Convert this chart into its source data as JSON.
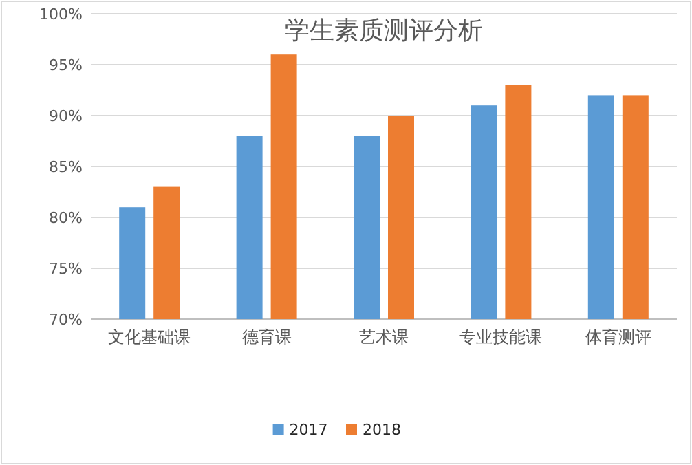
{
  "chart_data": {
    "type": "bar",
    "title": "学生素质测评分析",
    "categories": [
      "文化基础课",
      "德育课",
      "艺术课",
      "专业技能课",
      "体育测评"
    ],
    "series": [
      {
        "name": "2017",
        "color": "#5b9bd5",
        "values": [
          81,
          88,
          88,
          91,
          92
        ]
      },
      {
        "name": "2018",
        "color": "#ed7d31",
        "values": [
          83,
          96,
          90,
          93,
          92
        ]
      }
    ],
    "ylim": [
      70,
      100
    ],
    "yticks": [
      {
        "value": 70,
        "label": "70%"
      },
      {
        "value": 75,
        "label": "75%"
      },
      {
        "value": 80,
        "label": "80%"
      },
      {
        "value": 85,
        "label": "85%"
      },
      {
        "value": 90,
        "label": "90%"
      },
      {
        "value": 95,
        "label": "95%"
      },
      {
        "value": 100,
        "label": "100%"
      }
    ],
    "grid": "y",
    "legend": "bottom"
  }
}
